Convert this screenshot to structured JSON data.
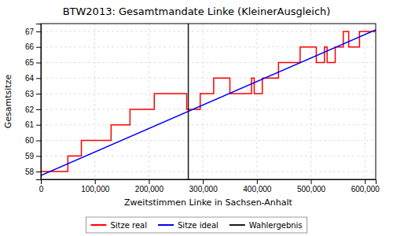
{
  "chart_data": {
    "type": "line",
    "title": "BTW2013: Gesamtmandate Linke (KleinerAusgleich)",
    "xlabel": "Zweitstimmen Linke in Sachsen-Anhalt",
    "ylabel": "Gesamtsitze",
    "xlim": [
      0,
      620000
    ],
    "ylim": [
      57.5,
      67.5
    ],
    "xticks": [
      0,
      {
        "value": 100000,
        "label": "100,000"
      },
      {
        "value": 200000,
        "label": "200,000"
      },
      {
        "value": 300000,
        "label": "300,000"
      },
      {
        "value": 400000,
        "label": "400,000"
      },
      {
        "value": 500000,
        "label": "500,000"
      },
      {
        "value": 600000,
        "label": "600,000"
      }
    ],
    "yticks": [
      58,
      59,
      60,
      61,
      62,
      63,
      64,
      65,
      66,
      67
    ],
    "grid": true,
    "legend": "bottom",
    "series": [
      {
        "name": "Sitze real",
        "color": "#ff0000",
        "x": [
          0,
          50000,
          50000,
          75000,
          75000,
          130000,
          130000,
          165000,
          165000,
          210000,
          210000,
          270000,
          270000,
          295000,
          295000,
          320000,
          320000,
          350000,
          350000,
          390000,
          390000,
          395000,
          395000,
          410000,
          410000,
          440000,
          440000,
          480000,
          480000,
          510000,
          510000,
          525000,
          525000,
          530000,
          530000,
          545000,
          545000,
          560000,
          560000,
          570000,
          570000,
          590000,
          590000,
          620000
        ],
        "values": [
          58,
          58,
          59,
          59,
          60,
          60,
          61,
          61,
          62,
          62,
          63,
          63,
          62,
          62,
          63,
          63,
          64,
          64,
          63,
          63,
          64,
          64,
          63,
          63,
          64,
          64,
          65,
          65,
          66,
          66,
          65,
          65,
          66,
          66,
          65,
          65,
          66,
          66,
          67,
          67,
          66,
          66,
          67,
          67
        ]
      },
      {
        "name": "Sitze ideal",
        "color": "#0000ff",
        "x": [
          0,
          620000
        ],
        "values": [
          57.75,
          67.1
        ]
      },
      {
        "name": "Wahlergebnis",
        "color": "#1a1a1a",
        "type": "vline",
        "x": [
          273000
        ]
      }
    ]
  }
}
